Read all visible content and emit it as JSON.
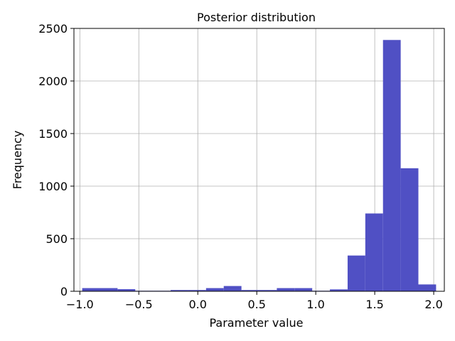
{
  "chart_data": {
    "type": "bar",
    "title": "Posterior distribution",
    "xlabel": "Parameter value",
    "ylabel": "Frequency",
    "xlim": [
      -1.05,
      2.09
    ],
    "ylim": [
      0,
      2500
    ],
    "xticks": [
      -1.0,
      -0.5,
      0.0,
      0.5,
      1.0,
      1.5,
      2.0
    ],
    "xtick_labels": [
      "−1.0",
      "−0.5",
      "0.0",
      "0.5",
      "1.0",
      "1.5",
      "2.0"
    ],
    "yticks": [
      0,
      500,
      1000,
      1500,
      2000,
      2500
    ],
    "ytick_labels": [
      "0",
      "500",
      "1000",
      "1500",
      "2000",
      "2500"
    ],
    "grid": true,
    "bar_color": "#5050c4",
    "bins": [
      {
        "x0": -0.98,
        "x1": -0.83,
        "value": 30
      },
      {
        "x0": -0.83,
        "x1": -0.68,
        "value": 30
      },
      {
        "x0": -0.68,
        "x1": -0.53,
        "value": 20
      },
      {
        "x0": -0.53,
        "x1": -0.38,
        "value": 5
      },
      {
        "x0": -0.38,
        "x1": -0.23,
        "value": 5
      },
      {
        "x0": -0.23,
        "x1": -0.08,
        "value": 12
      },
      {
        "x0": -0.08,
        "x1": 0.07,
        "value": 12
      },
      {
        "x0": 0.07,
        "x1": 0.22,
        "value": 30
      },
      {
        "x0": 0.22,
        "x1": 0.37,
        "value": 50
      },
      {
        "x0": 0.37,
        "x1": 0.52,
        "value": 12
      },
      {
        "x0": 0.52,
        "x1": 0.67,
        "value": 12
      },
      {
        "x0": 0.67,
        "x1": 0.82,
        "value": 30
      },
      {
        "x0": 0.82,
        "x1": 0.97,
        "value": 30
      },
      {
        "x0": 0.97,
        "x1": 1.12,
        "value": 5
      },
      {
        "x0": 1.12,
        "x1": 1.27,
        "value": 18
      },
      {
        "x0": 1.27,
        "x1": 1.42,
        "value": 340
      },
      {
        "x0": 1.42,
        "x1": 1.57,
        "value": 740
      },
      {
        "x0": 1.57,
        "x1": 1.72,
        "value": 2390
      },
      {
        "x0": 1.72,
        "x1": 1.87,
        "value": 1170
      },
      {
        "x0": 1.87,
        "x1": 2.02,
        "value": 65
      }
    ]
  }
}
